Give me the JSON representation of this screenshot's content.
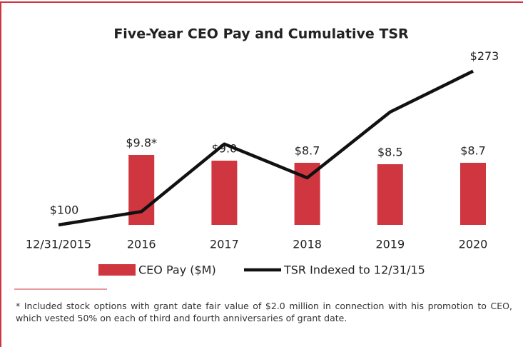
{
  "chart_data": {
    "type": "bar_line",
    "title": "Five-Year CEO Pay and Cumulative TSR",
    "categories": [
      "12/31/2015",
      "2016",
      "2017",
      "2018",
      "2019",
      "2020"
    ],
    "series": [
      {
        "name": "CEO Pay ($M)",
        "type": "bar",
        "color": "#d0363f",
        "values": [
          null,
          9.8,
          9.0,
          8.7,
          8.5,
          8.7
        ],
        "value_labels": [
          null,
          "$9.8*",
          "$9.0",
          "$8.7",
          "$8.5",
          "$8.7"
        ]
      },
      {
        "name": "TSR Indexed to 12/31/15",
        "type": "line",
        "axis": "y2",
        "color": "#111111",
        "values": [
          100,
          115,
          191,
          153,
          227,
          273
        ],
        "value_labels": [
          "$100",
          null,
          null,
          null,
          null,
          "$273"
        ]
      }
    ],
    "ylim": [
      0,
      30
    ],
    "y2lim": [
      100,
      341
    ],
    "footnote": "Included stock options with grant date fair value of $2.0 million in connection with his promotion to CEO, which vested 50% on each of third and fourth anniversaries of grant date."
  }
}
